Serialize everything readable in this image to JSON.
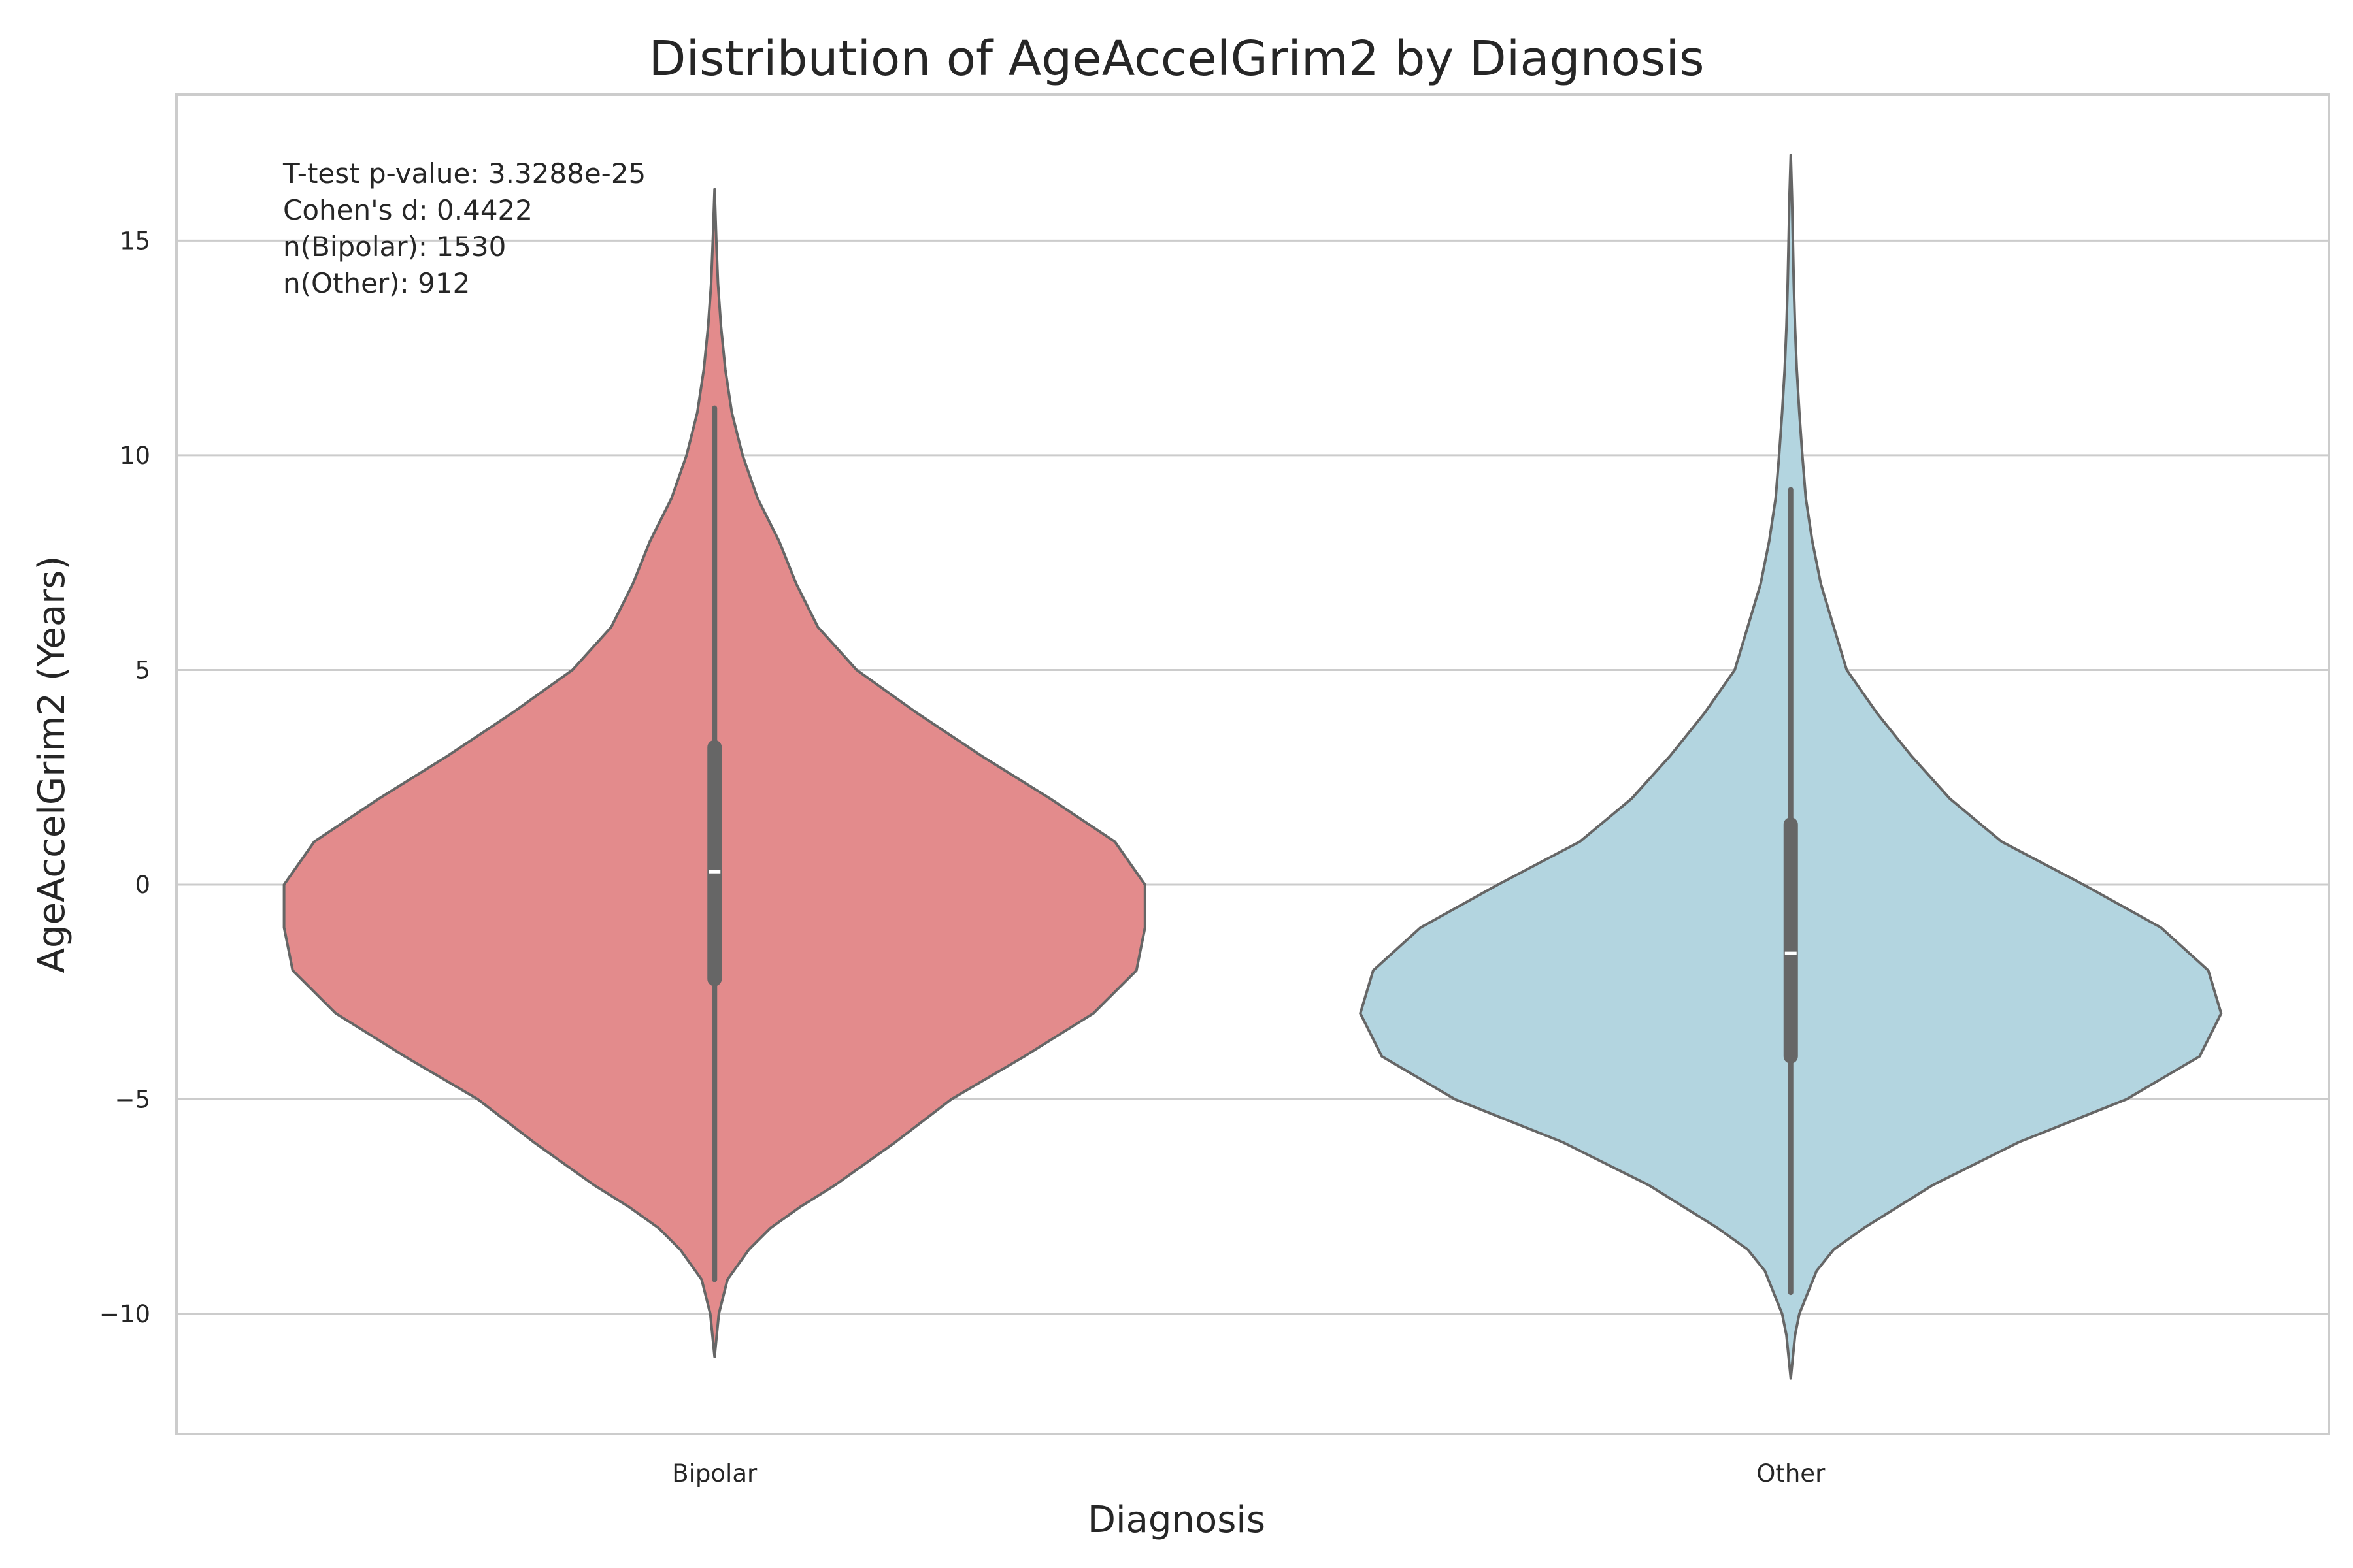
{
  "chart_data": {
    "type": "violin",
    "title": "Distribution of AgeAccelGrim2 by Diagnosis",
    "xlabel": "Diagnosis",
    "ylabel": "AgeAccelGrim2 (Years)",
    "ylim": [
      -12.8,
      18.4
    ],
    "yticks": [
      -10,
      -5,
      0,
      5,
      10,
      15
    ],
    "ytick_labels": [
      "−10",
      "−5",
      "0",
      "5",
      "10",
      "15"
    ],
    "grid": "horizontal",
    "categories": [
      "Bipolar",
      "Other"
    ],
    "series": [
      {
        "category": "Bipolar",
        "color": "#e38b8c",
        "min": -11.0,
        "max": 16.2,
        "whisker_low": -9.2,
        "whisker_high": 11.1,
        "q1": -2.2,
        "median": 0.3,
        "q3": 3.2,
        "density": [
          [
            -11.0,
            0.0
          ],
          [
            -10.0,
            0.01
          ],
          [
            -9.2,
            0.03
          ],
          [
            -8.5,
            0.08
          ],
          [
            -8.0,
            0.13
          ],
          [
            -7.5,
            0.2
          ],
          [
            -7.0,
            0.28
          ],
          [
            -6.0,
            0.42
          ],
          [
            -5.0,
            0.55
          ],
          [
            -4.0,
            0.72
          ],
          [
            -3.0,
            0.88
          ],
          [
            -2.0,
            0.98
          ],
          [
            -1.0,
            1.0
          ],
          [
            0.0,
            1.0
          ],
          [
            1.0,
            0.93
          ],
          [
            2.0,
            0.78
          ],
          [
            3.0,
            0.62
          ],
          [
            4.0,
            0.47
          ],
          [
            5.0,
            0.33
          ],
          [
            6.0,
            0.24
          ],
          [
            7.0,
            0.19
          ],
          [
            8.0,
            0.15
          ],
          [
            9.0,
            0.1
          ],
          [
            10.0,
            0.065
          ],
          [
            11.0,
            0.04
          ],
          [
            12.0,
            0.025
          ],
          [
            13.0,
            0.015
          ],
          [
            14.0,
            0.008
          ],
          [
            15.0,
            0.004
          ],
          [
            16.2,
            0.0
          ]
        ]
      },
      {
        "category": "Other",
        "color": "#b3d5e0",
        "min": -11.5,
        "max": 17.0,
        "whisker_low": -9.5,
        "whisker_high": 9.2,
        "q1": -4.0,
        "median": -1.6,
        "q3": 1.4,
        "density": [
          [
            -11.5,
            0.0
          ],
          [
            -10.5,
            0.01
          ],
          [
            -10.0,
            0.02
          ],
          [
            -9.0,
            0.06
          ],
          [
            -8.5,
            0.1
          ],
          [
            -8.0,
            0.17
          ],
          [
            -7.0,
            0.33
          ],
          [
            -6.0,
            0.53
          ],
          [
            -5.0,
            0.78
          ],
          [
            -4.0,
            0.95
          ],
          [
            -3.0,
            1.0
          ],
          [
            -2.0,
            0.97
          ],
          [
            -1.0,
            0.86
          ],
          [
            0.0,
            0.68
          ],
          [
            1.0,
            0.49
          ],
          [
            2.0,
            0.37
          ],
          [
            3.0,
            0.28
          ],
          [
            4.0,
            0.2
          ],
          [
            5.0,
            0.13
          ],
          [
            6.0,
            0.1
          ],
          [
            7.0,
            0.07
          ],
          [
            8.0,
            0.05
          ],
          [
            9.0,
            0.035
          ],
          [
            10.0,
            0.027
          ],
          [
            11.0,
            0.02
          ],
          [
            12.0,
            0.014
          ],
          [
            13.0,
            0.01
          ],
          [
            14.0,
            0.007
          ],
          [
            15.0,
            0.005
          ],
          [
            16.0,
            0.003
          ],
          [
            17.0,
            0.0
          ]
        ]
      }
    ],
    "annotations": [
      "T-test p-value: 3.3288e-25",
      "Cohen's d: 0.4422",
      "n(Bipolar): 1530",
      "n(Other): 912"
    ]
  }
}
